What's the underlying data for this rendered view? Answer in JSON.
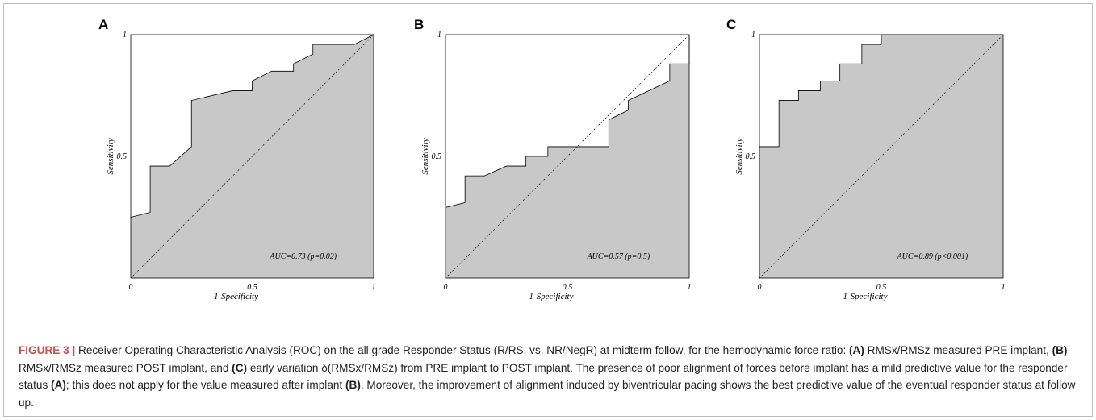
{
  "chart_data": [
    {
      "type": "area",
      "panel": "A",
      "xlabel": "1-Specificity",
      "ylabel": "Sensitivity",
      "xlim": [
        0,
        1
      ],
      "ylim": [
        0,
        1
      ],
      "xticks": [
        "0",
        "0.5",
        "1"
      ],
      "yticks": [
        "0.5",
        "1"
      ],
      "annotation": "AUC=0.73 (p=0.02)",
      "roc": [
        [
          0,
          0.25
        ],
        [
          0.08,
          0.27
        ],
        [
          0.08,
          0.46
        ],
        [
          0.16,
          0.46
        ],
        [
          0.25,
          0.54
        ],
        [
          0.25,
          0.73
        ],
        [
          0.42,
          0.77
        ],
        [
          0.5,
          0.77
        ],
        [
          0.5,
          0.81
        ],
        [
          0.58,
          0.85
        ],
        [
          0.67,
          0.85
        ],
        [
          0.67,
          0.88
        ],
        [
          0.75,
          0.92
        ],
        [
          0.75,
          0.96
        ],
        [
          0.92,
          0.96
        ],
        [
          1,
          1
        ]
      ],
      "diagonal": true
    },
    {
      "type": "area",
      "panel": "B",
      "xlabel": "1-Specificity",
      "ylabel": "Sensitivity",
      "xlim": [
        0,
        1
      ],
      "ylim": [
        0,
        1
      ],
      "xticks": [
        "0",
        "0.5",
        "1"
      ],
      "yticks": [
        "0.5",
        "1"
      ],
      "annotation": "AUC=0.57 (p=0.5)",
      "roc": [
        [
          0,
          0.29
        ],
        [
          0.08,
          0.31
        ],
        [
          0.08,
          0.42
        ],
        [
          0.16,
          0.42
        ],
        [
          0.25,
          0.46
        ],
        [
          0.33,
          0.46
        ],
        [
          0.33,
          0.5
        ],
        [
          0.42,
          0.5
        ],
        [
          0.42,
          0.54
        ],
        [
          0.67,
          0.54
        ],
        [
          0.67,
          0.65
        ],
        [
          0.75,
          0.69
        ],
        [
          0.75,
          0.73
        ],
        [
          0.92,
          0.81
        ],
        [
          0.92,
          0.88
        ],
        [
          1,
          0.88
        ],
        [
          1,
          1
        ]
      ],
      "diagonal": true
    },
    {
      "type": "area",
      "panel": "C",
      "xlabel": "1-Specificity",
      "ylabel": "Sensitivity",
      "xlim": [
        0,
        1
      ],
      "ylim": [
        0,
        1
      ],
      "xticks": [
        "0",
        "0.5",
        "1"
      ],
      "yticks": [
        "0.5",
        "1"
      ],
      "annotation": "AUC=0.89 (p<0.001)",
      "roc": [
        [
          0,
          0.54
        ],
        [
          0.08,
          0.54
        ],
        [
          0.08,
          0.73
        ],
        [
          0.16,
          0.73
        ],
        [
          0.16,
          0.77
        ],
        [
          0.25,
          0.77
        ],
        [
          0.25,
          0.81
        ],
        [
          0.33,
          0.81
        ],
        [
          0.33,
          0.88
        ],
        [
          0.42,
          0.88
        ],
        [
          0.42,
          0.96
        ],
        [
          0.5,
          0.96
        ],
        [
          0.5,
          1
        ],
        [
          1,
          1
        ]
      ],
      "diagonal": true
    }
  ],
  "colors": {
    "fill": "#c8c8c8",
    "stroke": "#000000",
    "caption_lead": "#c0504d"
  },
  "caption": {
    "lead": "FIGURE 3 |",
    "segments": [
      {
        "t": " Receiver Operating Characteristic Analysis (ROC) on the all grade Responder Status (R/RS, vs. NR/NegR) at midterm follow, for the hemodynamic force ratio: "
      },
      {
        "t": "(A)",
        "b": true
      },
      {
        "t": " RMSx/RMSz measured PRE implant, "
      },
      {
        "t": "(B)",
        "b": true
      },
      {
        "t": " RMSx/RMSz measured POST implant, and "
      },
      {
        "t": "(C)",
        "b": true
      },
      {
        "t": " early variation δ(RMSx/RMSz) from PRE implant to POST implant. The presence of poor alignment of forces before implant has a mild predictive value for the responder status "
      },
      {
        "t": "(A)",
        "b": true
      },
      {
        "t": "; this does not apply for the value measured after implant "
      },
      {
        "t": "(B)",
        "b": true
      },
      {
        "t": ". Moreover, the improvement of alignment induced by biventricular pacing shows the best predictive value of the eventual responder status at follow up."
      }
    ]
  }
}
